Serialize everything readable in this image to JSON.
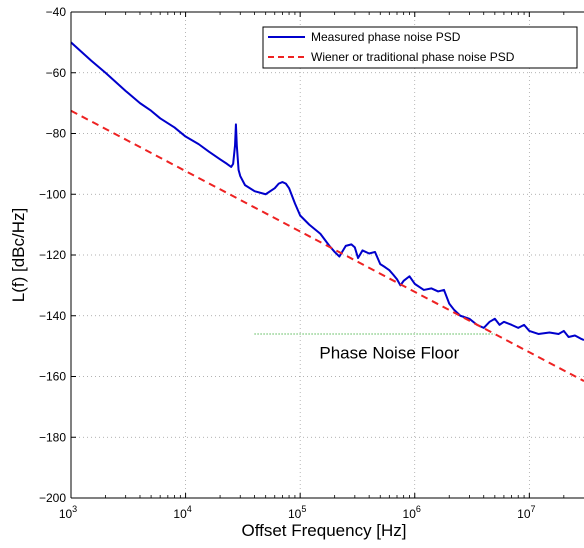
{
  "chart_data": {
    "type": "line",
    "xlabel": "Offset Frequency [Hz]",
    "ylabel": "L(f) [dBc/Hz]",
    "x_scale": "log",
    "xlim": [
      1000,
      30000000
    ],
    "ylim": [
      -200,
      -40
    ],
    "x_ticks": [
      {
        "value": 1000,
        "base": "10",
        "exp": "3"
      },
      {
        "value": 10000,
        "base": "10",
        "exp": "4"
      },
      {
        "value": 100000,
        "base": "10",
        "exp": "5"
      },
      {
        "value": 1000000,
        "base": "10",
        "exp": "6"
      },
      {
        "value": 10000000,
        "base": "10",
        "exp": "7"
      }
    ],
    "y_ticks": [
      {
        "value": -40,
        "label": "−40"
      },
      {
        "value": -60,
        "label": "−60"
      },
      {
        "value": -80,
        "label": "−80"
      },
      {
        "value": -100,
        "label": "−100"
      },
      {
        "value": -120,
        "label": "−120"
      },
      {
        "value": -140,
        "label": "−140"
      },
      {
        "value": -160,
        "label": "−160"
      },
      {
        "value": -180,
        "label": "−180"
      },
      {
        "value": -200,
        "label": "−200"
      }
    ],
    "grid": true,
    "legend_position": "top-right",
    "series": [
      {
        "name": "Measured phase noise PSD",
        "color": "#0000cc",
        "style": "solid",
        "x": [
          1000,
          1500,
          2000,
          3000,
          4000,
          5000,
          6000,
          8000,
          10000,
          13000,
          16000,
          20000,
          23000,
          25000,
          26000,
          27000,
          27500,
          28000,
          29000,
          30000,
          33000,
          40000,
          50000,
          60000,
          65000,
          70000,
          75000,
          80000,
          90000,
          100000,
          120000,
          150000,
          180000,
          200000,
          220000,
          250000,
          280000,
          300000,
          320000,
          350000,
          400000,
          450000,
          500000,
          550000,
          600000,
          650000,
          700000,
          750000,
          800000,
          900000,
          1000000,
          1200000,
          1400000,
          1600000,
          1800000,
          2000000,
          2200000,
          2500000,
          3000000,
          3500000,
          4000000,
          4500000,
          5000000,
          5500000,
          6000000,
          7000000,
          8000000,
          9000000,
          10000000,
          12000000,
          15000000,
          18000000,
          20000000,
          22000000,
          25000000,
          28000000,
          30000000
        ],
        "y": [
          -50,
          -56,
          -60,
          -66,
          -70,
          -72.5,
          -75,
          -78,
          -81,
          -83.5,
          -86,
          -88.5,
          -90,
          -91,
          -90,
          -84,
          -77,
          -84,
          -92,
          -94,
          -97,
          -99,
          -100,
          -98,
          -96.5,
          -96,
          -96.5,
          -98,
          -103,
          -107,
          -110,
          -113,
          -117,
          -119,
          -120.5,
          -117,
          -116.5,
          -117.5,
          -121,
          -118.5,
          -119.5,
          -119,
          -123,
          -124,
          -125,
          -126.5,
          -128,
          -130,
          -128.5,
          -127,
          -129.5,
          -131.5,
          -131,
          -132,
          -131.5,
          -136,
          -138,
          -140,
          -141,
          -143,
          -144,
          -142,
          -141,
          -143,
          -142,
          -143,
          -144,
          -143,
          -145,
          -146,
          -145.5,
          -146,
          -145,
          -147,
          -146.5,
          -147.5,
          -148
        ]
      },
      {
        "name": "Wiener or traditional phase noise PSD",
        "color": "#ee2222",
        "style": "dashed",
        "x": [
          1000,
          30000000
        ],
        "y": [
          -72.5,
          -161.5
        ]
      }
    ],
    "floor_line": {
      "x": [
        40000,
        5000000
      ],
      "y": [
        -146,
        -146
      ],
      "color": "#33aa33"
    },
    "annotations": [
      {
        "text": "Phase Noise Floor",
        "x": 600000,
        "y": -154
      }
    ]
  }
}
